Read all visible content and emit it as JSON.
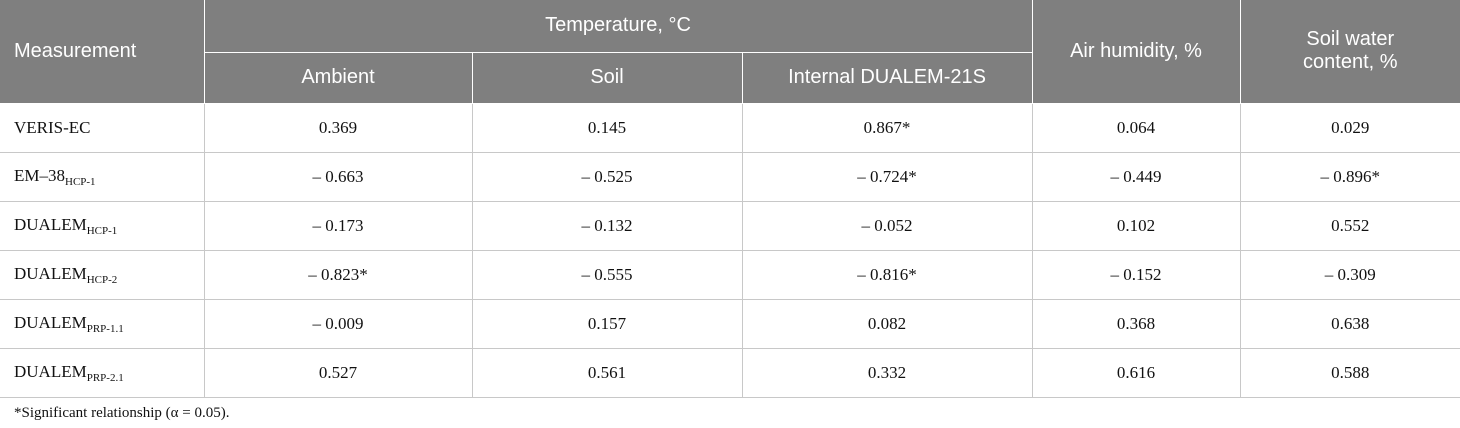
{
  "table": {
    "header": {
      "measurement": "Measurement",
      "temperature": "Temperature, °C",
      "ambient": "Ambient",
      "soil": "Soil",
      "internal": "Internal DUALEM-21S",
      "air_humidity": "Air humidity, %",
      "soil_water": "Soil water content, %"
    },
    "rows": [
      {
        "label": "VERIS-EC",
        "sub": null,
        "cells": [
          "0.369",
          "0.145",
          "0.867*",
          "0.064",
          "0.029"
        ]
      },
      {
        "label": "EM–38",
        "sub": "HCP-1",
        "cells": [
          "– 0.663",
          "– 0.525",
          "– 0.724*",
          "– 0.449",
          "– 0.896*"
        ]
      },
      {
        "label": "DUALEM",
        "sub": "HCP-1",
        "cells": [
          "– 0.173",
          "– 0.132",
          "– 0.052",
          "0.102",
          "0.552"
        ]
      },
      {
        "label": "DUALEM",
        "sub": "HCP-2",
        "cells": [
          "– 0.823*",
          "– 0.555",
          "– 0.816*",
          "– 0.152",
          "– 0.309"
        ]
      },
      {
        "label": "DUALEM",
        "sub": "PRP-1.1",
        "cells": [
          "– 0.009",
          "0.157",
          "0.082",
          "0.368",
          "0.638"
        ]
      },
      {
        "label": "DUALEM",
        "sub": "PRP-2.1",
        "cells": [
          "0.527",
          "0.561",
          "0.332",
          "0.616",
          "0.588"
        ]
      }
    ],
    "footnote": "*Significant relationship (α = 0.05)."
  }
}
